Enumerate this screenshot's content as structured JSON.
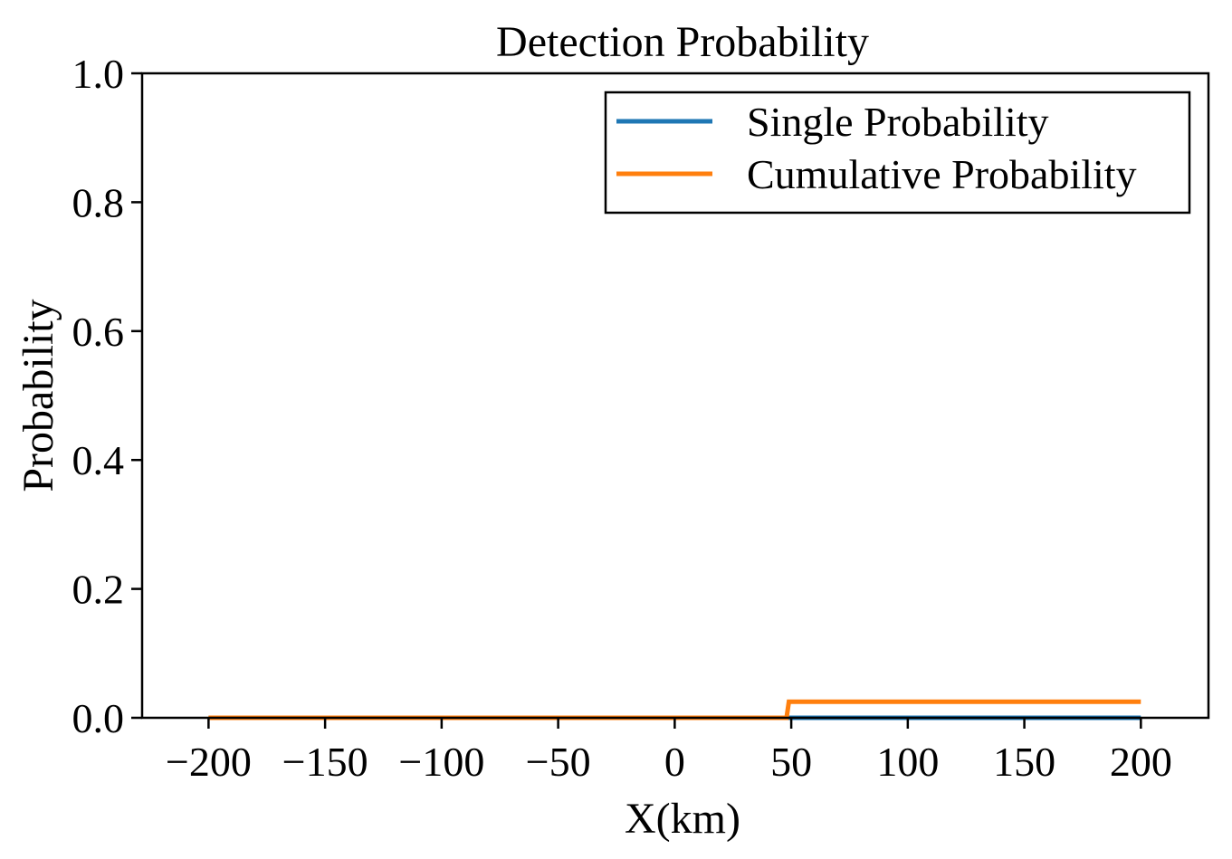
{
  "chart_data": {
    "type": "line",
    "title": "Detection Probability",
    "xlabel": "X(km)",
    "ylabel": "Probability",
    "xlim": [
      -228.5,
      229
    ],
    "ylim": [
      0,
      1
    ],
    "xticks": [
      -200,
      -150,
      -100,
      -50,
      0,
      50,
      100,
      150,
      200
    ],
    "xtick_labels": [
      "−200",
      "−150",
      "−100",
      "−50",
      "0",
      "50",
      "100",
      "150",
      "200"
    ],
    "yticks": [
      0,
      0.2,
      0.4,
      0.6,
      0.8,
      1.0
    ],
    "ytick_labels": [
      "0.0",
      "0.2",
      "0.4",
      "0.6",
      "0.8",
      "1.0"
    ],
    "grid": false,
    "legend_position": "upper right",
    "series": [
      {
        "name": "Single Probability",
        "color": "#1f77b4",
        "x": [
          -200,
          200
        ],
        "y": [
          0,
          0
        ]
      },
      {
        "name": "Cumulative Probability",
        "color": "#ff7f0e",
        "x": [
          -200,
          48,
          49,
          200
        ],
        "y": [
          0,
          0,
          0.025,
          0.025
        ]
      }
    ]
  }
}
